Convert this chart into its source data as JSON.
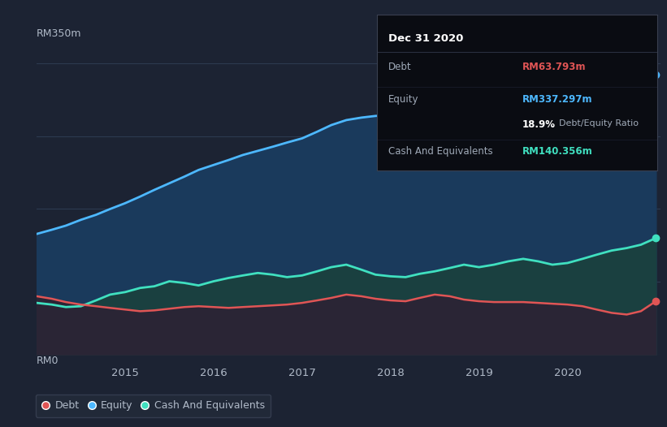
{
  "bg_color": "#1c2333",
  "chart_bg_color": "#1c2333",
  "title": "Dec 31 2020",
  "ylabel_top": "RM350m",
  "ylabel_bottom": "RM0",
  "x_ticks": [
    2015,
    2016,
    2017,
    2018,
    2019,
    2020
  ],
  "tooltip": {
    "date": "Dec 31 2020",
    "debt_label": "Debt",
    "debt_value": "RM63.793m",
    "equity_label": "Equity",
    "equity_value": "RM337.297m",
    "ratio": "18.9%",
    "ratio_label": "Debt/Equity Ratio",
    "cash_label": "Cash And Equivalents",
    "cash_value": "RM140.356m"
  },
  "debt_color": "#e05555",
  "equity_color": "#4db8ff",
  "cash_color": "#40e0c0",
  "equity_fill_color": "#1a3a5c",
  "cash_fill_color": "#1a4040",
  "debt_fill_color": "#2a2535",
  "grid_color": "#2d3a50",
  "text_color": "#b0bac8",
  "legend_bg": "#232b3a",
  "years": [
    2014.0,
    2014.17,
    2014.33,
    2014.5,
    2014.67,
    2014.83,
    2015.0,
    2015.17,
    2015.33,
    2015.5,
    2015.67,
    2015.83,
    2016.0,
    2016.17,
    2016.33,
    2016.5,
    2016.67,
    2016.83,
    2017.0,
    2017.17,
    2017.33,
    2017.5,
    2017.67,
    2017.83,
    2018.0,
    2018.17,
    2018.33,
    2018.5,
    2018.67,
    2018.83,
    2019.0,
    2019.17,
    2019.33,
    2019.5,
    2019.67,
    2019.83,
    2020.0,
    2020.17,
    2020.33,
    2020.5,
    2020.67,
    2020.83,
    2021.0
  ],
  "equity": [
    145,
    150,
    155,
    162,
    168,
    175,
    182,
    190,
    198,
    206,
    214,
    222,
    228,
    234,
    240,
    245,
    250,
    255,
    260,
    268,
    276,
    282,
    285,
    287,
    288,
    289,
    290,
    291,
    293,
    295,
    298,
    304,
    310,
    316,
    320,
    325,
    328,
    332,
    336,
    340,
    344,
    347,
    337
  ],
  "cash": [
    62,
    60,
    57,
    58,
    65,
    72,
    75,
    80,
    82,
    88,
    86,
    83,
    88,
    92,
    95,
    98,
    96,
    93,
    95,
    100,
    105,
    108,
    102,
    96,
    94,
    93,
    97,
    100,
    104,
    108,
    105,
    108,
    112,
    115,
    112,
    108,
    110,
    115,
    120,
    125,
    128,
    132,
    140
  ],
  "debt": [
    70,
    67,
    63,
    60,
    58,
    56,
    54,
    52,
    53,
    55,
    57,
    58,
    57,
    56,
    57,
    58,
    59,
    60,
    62,
    65,
    68,
    72,
    70,
    67,
    65,
    64,
    68,
    72,
    70,
    66,
    64,
    63,
    63,
    63,
    62,
    61,
    60,
    58,
    54,
    50,
    48,
    52,
    64
  ]
}
